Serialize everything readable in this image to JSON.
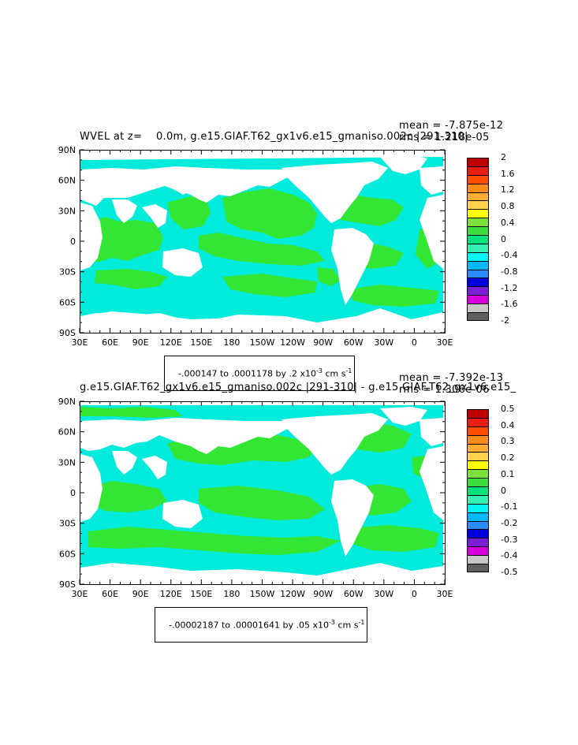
{
  "panels": [
    {
      "title": "WVEL at z=    0.0m, g.e15.GIAF.T62_gx1v6.e15_gmaniso.002c |291-310|",
      "mean_text": "mean = -7.875e-12",
      "rms_text": "rms = 1.218e-05",
      "range_text": "-.000147 to .0001178 by .2 x10",
      "range_exp": "-3",
      "range_units": " cm s",
      "range_units_exp": "-1",
      "colorbar_labels": [
        "2",
        "1.6",
        "1.2",
        "0.8",
        "0.4",
        "0",
        "-0.4",
        "-0.8",
        "-1.2",
        "-1.6",
        "-2"
      ],
      "colorbar_colors": [
        "#c00000",
        "#e81c10",
        "#ff4c00",
        "#ff8c1a",
        "#ffad33",
        "#ffd24a",
        "#ffff00",
        "#7be03a",
        "#3cdc3c",
        "#00e27a",
        "#33f0b4",
        "#00f5f5",
        "#00b8ff",
        "#2a8cff",
        "#0000dd",
        "#7a1fd6",
        "#d800d8",
        "#c8c8c8",
        "#606060"
      ],
      "map_fill": {
        "green": "#33e633",
        "cyan": "#00ebdc"
      }
    },
    {
      "title": "g.e15.GIAF.T62_gx1v6.e15_gmaniso.002c |291-310| - g.e15.GIAF.T62_gx1v6.e15_",
      "mean_text": "mean = -7.392e-13",
      "rms_text": "rms = 1.306e-06",
      "range_text": "-.00002187 to .00001641 by .05 x10",
      "range_exp": "-3",
      "range_units": " cm s",
      "range_units_exp": "-1",
      "colorbar_labels": [
        "0.5",
        "0.4",
        "0.3",
        "0.2",
        "0.1",
        "0",
        "-0.1",
        "-0.2",
        "-0.3",
        "-0.4",
        "-0.5"
      ],
      "colorbar_colors": [
        "#c00000",
        "#e81c10",
        "#ff4c00",
        "#ff8c1a",
        "#ffad33",
        "#ffd24a",
        "#ffff00",
        "#7be03a",
        "#3cdc3c",
        "#00e27a",
        "#33f0b4",
        "#00f5f5",
        "#00b8ff",
        "#2a8cff",
        "#0000dd",
        "#7a1fd6",
        "#d800d8",
        "#c8c8c8",
        "#606060"
      ],
      "map_fill": {
        "green": "#33e633",
        "cyan": "#00ebdc"
      }
    }
  ],
  "chart_data": [
    {
      "type": "heatmap",
      "title": "WVEL at z=    0.0m, g.e15.GIAF.T62_gx1v6.e15_gmaniso.002c |291-310|",
      "x_ticks": [
        "30E",
        "60E",
        "90E",
        "120E",
        "150E",
        "180",
        "150W",
        "120W",
        "90W",
        "60W",
        "30W",
        "0",
        "30E"
      ],
      "y_ticks": [
        "90N",
        "60N",
        "30N",
        "0",
        "30S",
        "60S",
        "90S"
      ],
      "xlim": [
        30,
        390
      ],
      "ylim": [
        -90,
        90
      ],
      "colorbar_levels": [
        -2,
        -1.6,
        -1.2,
        -0.8,
        -0.4,
        0,
        0.4,
        0.8,
        1.2,
        1.6,
        2
      ],
      "data_min": -0.000147,
      "data_max": 0.0001178,
      "contour_interval": 0.2,
      "units": "x10^-3 cm s^-1",
      "mean": -7.875e-12,
      "rms": 1.218e-05
    },
    {
      "type": "heatmap",
      "title": "g.e15.GIAF.T62_gx1v6.e15_gmaniso.002c |291-310| - g.e15.GIAF.T62_gx1v6.e15_",
      "x_ticks": [
        "30E",
        "60E",
        "90E",
        "120E",
        "150E",
        "180",
        "150W",
        "120W",
        "90W",
        "60W",
        "30W",
        "0",
        "30E"
      ],
      "y_ticks": [
        "90N",
        "60N",
        "30N",
        "0",
        "30S",
        "60S",
        "90S"
      ],
      "xlim": [
        30,
        390
      ],
      "ylim": [
        -90,
        90
      ],
      "colorbar_levels": [
        -0.5,
        -0.4,
        -0.3,
        -0.2,
        -0.1,
        0,
        0.1,
        0.2,
        0.3,
        0.4,
        0.5
      ],
      "data_min": -2.187e-05,
      "data_max": 1.641e-05,
      "contour_interval": 0.05,
      "units": "x10^-3 cm s^-1",
      "mean": -7.392e-13,
      "rms": 1.306e-06
    }
  ]
}
